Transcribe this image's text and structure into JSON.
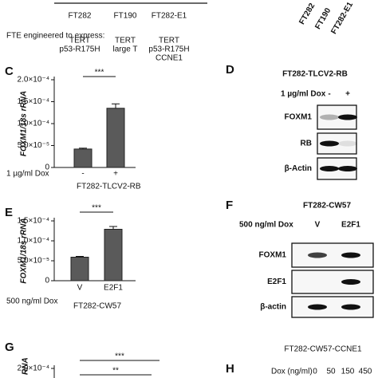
{
  "top": {
    "xlabels": [
      "FT282",
      "FT190",
      "FT282-E1"
    ],
    "engineered_label": "FTE engineered to express:",
    "constructs": [
      [
        "TERT",
        "p53-R175H"
      ],
      [
        "TERT",
        "large T"
      ],
      [
        "TERT",
        "p53-R175H",
        "CCNE1"
      ]
    ],
    "rotated_labels": [
      "FT282",
      "FT190",
      "FT282-E1"
    ]
  },
  "chart_data": [
    {
      "type": "bar",
      "panel_label": "C",
      "ylabel": "FOXM1/18s rRNA",
      "categories": [
        "-",
        "+"
      ],
      "values": [
        4.2e-05,
        0.000135
      ],
      "errors": [
        2e-06,
        1e-05
      ],
      "color": "#5a5a5a",
      "ylim": [
        0,
        0.0002
      ],
      "yticks": [
        0,
        {
          "value": 5e-05,
          "label": "5.0×10⁻⁵"
        },
        {
          "value": 0.0001,
          "label": "1.0×10⁻⁴"
        },
        {
          "value": 0.00015,
          "label": "1.5×10⁻⁴"
        },
        {
          "value": 0.0002,
          "label": "2.0×10⁻⁴"
        }
      ],
      "significance": "***",
      "treatment_label": "1 µg/ml Dox",
      "cell_line": "FT282-TLCV2-RB"
    },
    {
      "type": "bar",
      "panel_label": "E",
      "ylabel": "FOXM1/18s rRNA",
      "categories": [
        "V",
        "E2F1"
      ],
      "values": [
        5.9e-05,
        0.000129
      ],
      "errors": [
        2e-06,
        7e-06
      ],
      "color": "#5a5a5a",
      "ylim": [
        0,
        0.00015
      ],
      "yticks": [
        0,
        {
          "value": 5e-05,
          "label": "5.0×10⁻⁵"
        },
        {
          "value": 0.0001,
          "label": "1.0×10⁻⁴"
        },
        {
          "value": 0.00015,
          "label": "1.5×10⁻⁴"
        }
      ],
      "significance": "***",
      "treatment_label": "500 ng/ml Dox",
      "cell_line": "FT282-CW57"
    }
  ],
  "panel_d": {
    "panel_label": "D",
    "title": "FT282-TLCV2-RB",
    "treatment_label": "1 µg/ml Dox",
    "lanes": [
      "-",
      "+"
    ],
    "rows": [
      "FOXM1",
      "RB",
      "β-Actin"
    ]
  },
  "panel_f": {
    "panel_label": "F",
    "title": "FT282-CW57",
    "treatment_label": "500 ng/ml Dox",
    "lanes": [
      "V",
      "E2F1"
    ],
    "rows": [
      "FOXM1",
      "E2F1",
      "β-actin"
    ]
  },
  "panel_g": {
    "panel_label": "G",
    "ylabel_fragment": "RNA",
    "ytick": "2.0×10⁻⁴",
    "significance": [
      "***",
      "**"
    ]
  },
  "panel_h": {
    "panel_label": "H",
    "title": "FT282-CW57-CCNE1",
    "treatment_label": "Dox (ng/ml)",
    "lanes": [
      "0",
      "50",
      "150",
      "450"
    ]
  }
}
